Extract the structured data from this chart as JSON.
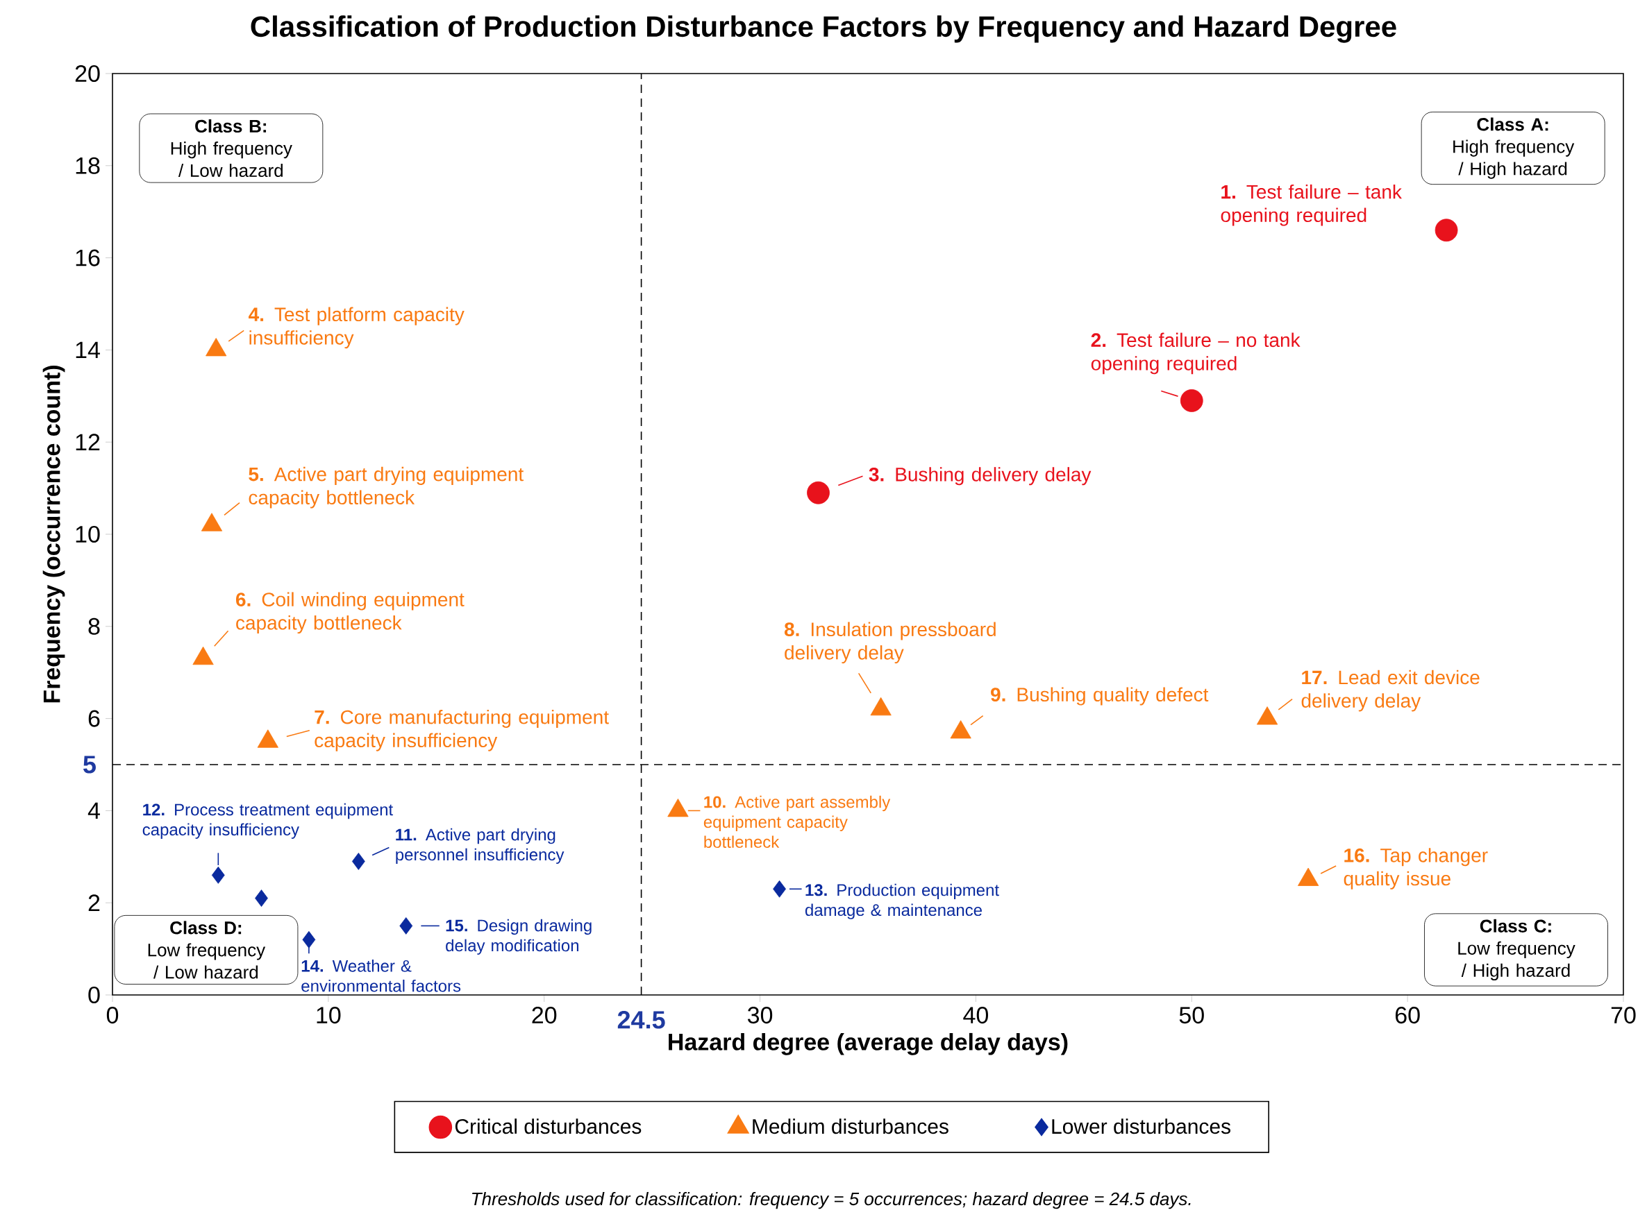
{
  "chart_data": {
    "type": "scatter",
    "title": "Classification of Production Disturbance Factors by Frequency and Hazard Degree",
    "xlabel": "Hazard degree (average delay days)",
    "ylabel": "Frequency (occurrence count)",
    "xlim": [
      0,
      70
    ],
    "ylim": [
      0,
      20
    ],
    "xticks": [
      0,
      10,
      20,
      30,
      40,
      50,
      60,
      70
    ],
    "yticks": [
      0,
      2,
      4,
      6,
      8,
      10,
      12,
      14,
      16,
      18,
      20
    ],
    "grid": false,
    "legend": "bottom",
    "series": [
      {
        "name": "Critical disturbances",
        "color": "#e8121c",
        "marker": "circle",
        "x": [
          61.8,
          50.0,
          32.7
        ],
        "values": [
          16.6,
          12.9,
          10.9
        ]
      },
      {
        "name": "Medium disturbances",
        "color": "#f97a12",
        "marker": "triangle",
        "x": [
          4.8,
          4.6,
          4.2,
          7.2,
          35.6,
          39.3,
          53.5,
          26.2,
          55.4
        ],
        "values": [
          14.0,
          10.2,
          7.3,
          5.5,
          6.2,
          5.7,
          6.0,
          4.0,
          2.5
        ]
      },
      {
        "name": "Lower disturbances",
        "color": "#0a2a9e",
        "marker": "diamond",
        "x": [
          11.4,
          4.9,
          6.9,
          30.9,
          9.1,
          13.6
        ],
        "values": [
          2.9,
          2.6,
          2.1,
          2.3,
          1.2,
          1.5
        ]
      }
    ],
    "ref_lines": [
      {
        "axis": "x",
        "value": 24.5,
        "label": "24.5",
        "color": "#000000",
        "line_style": "dashed"
      },
      {
        "axis": "y",
        "value": 5,
        "label": "5",
        "color": "#000000",
        "line_style": "dashed"
      }
    ],
    "annotations": [
      {
        "text": "**1.** Test failure – tank opening required",
        "x": 61.8,
        "y": 16.6
      },
      {
        "text": "**2.** Test failure – no tank opening required",
        "x": 50.0,
        "y": 12.9
      },
      {
        "text": "**3.** Bushing delivery delay",
        "x": 32.7,
        "y": 10.9
      },
      {
        "text": "**4.** Test platform capacity insufficiency",
        "x": 4.8,
        "y": 14.0
      },
      {
        "text": "**5.** Active part drying equipment capacity bottleneck",
        "x": 4.6,
        "y": 10.2
      },
      {
        "text": "**6.** Coil winding equipment capacity bottleneck",
        "x": 4.2,
        "y": 7.3
      },
      {
        "text": "**7.** Core manufacturing equipment capacity insufficiency",
        "x": 7.2,
        "y": 5.5
      },
      {
        "text": "**8.** Insulation pressboard delivery delay",
        "x": 35.6,
        "y": 6.2
      },
      {
        "text": "**9.** Bushing quality defect",
        "x": 39.3,
        "y": 5.7
      },
      {
        "text": "**10.** Active part assembly equipment capacity bottleneck",
        "x": 26.2,
        "y": 4.0
      },
      {
        "text": "**11.** Active part drying personnel insufficiency",
        "x": 11.4,
        "y": 2.9
      },
      {
        "text": "**12.** Process treatment equipment capacity insufficiency",
        "x": 4.9,
        "y": 2.6
      },
      {
        "text": "**13.** Production equipment damage & maintenance",
        "x": 30.9,
        "y": 2.3
      },
      {
        "text": "**14.** Weather & environmental factors",
        "x": 9.1,
        "y": 1.2
      },
      {
        "text": "**15.** Design drawing delay modification",
        "x": 13.6,
        "y": 1.5
      },
      {
        "text": "**16.** Tap changer quality issue",
        "x": 55.4,
        "y": 2.5
      },
      {
        "text": "**17.** Lead exit device delivery delay",
        "x": 53.5,
        "y": 6.0
      },
      "Class B:",
      "High frequency / Low hazard",
      "Class A:",
      "High frequency / High hazard",
      "Class D:",
      "Low frequency / Low hazard",
      "Class C:",
      "Low frequency / High hazard",
      "Thresholds used for classification: frequency = 5 occurrences; hazard degree = 24.5 days."
    ]
  }
}
